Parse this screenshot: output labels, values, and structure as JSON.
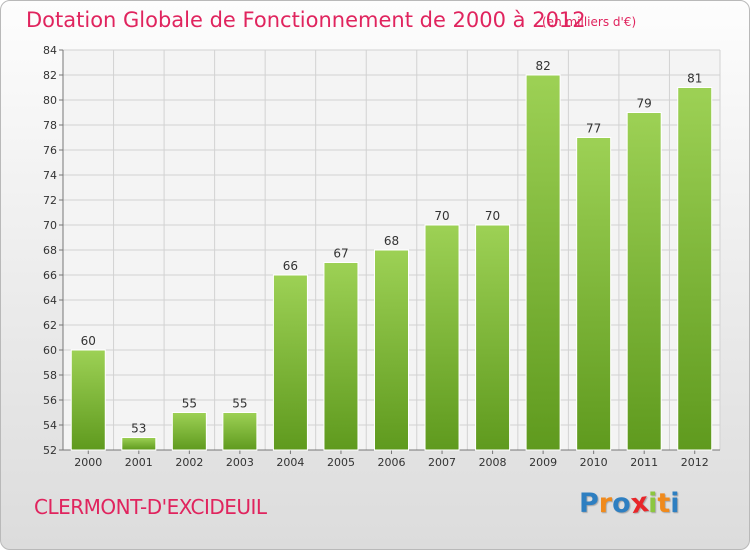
{
  "header": {
    "title": "Dotation Globale de Fonctionnement de 2000 à 2012",
    "subtitle": "(en milliers d'€)"
  },
  "footer": {
    "commune": "CLERMONT-D'EXCIDEUIL",
    "brand": "Proxiti",
    "brand_letters": [
      {
        "char": "P",
        "color": "#2e7fc1"
      },
      {
        "char": "r",
        "color": "#f08a1c"
      },
      {
        "char": "o",
        "color": "#2e7fc1"
      },
      {
        "char": "x",
        "color": "#e8262a"
      },
      {
        "char": "i",
        "color": "#8cc63f"
      },
      {
        "char": "t",
        "color": "#f08a1c"
      },
      {
        "char": "i",
        "color": "#2e7fc1"
      }
    ]
  },
  "chart_data": {
    "type": "bar",
    "title": "Dotation Globale de Fonctionnement de 2000 à 2012",
    "subtitle": "(en milliers d'€)",
    "categories": [
      "2000",
      "2001",
      "2002",
      "2003",
      "2004",
      "2005",
      "2006",
      "2007",
      "2008",
      "2009",
      "2010",
      "2011",
      "2012"
    ],
    "values": [
      60,
      53,
      55,
      55,
      66,
      67,
      68,
      70,
      70,
      82,
      77,
      79,
      81
    ],
    "ylim": [
      52,
      84
    ],
    "yticks": [
      52,
      54,
      56,
      58,
      60,
      62,
      64,
      66,
      68,
      70,
      72,
      74,
      76,
      78,
      80,
      82,
      84
    ],
    "grid": true,
    "bar_color_top": "#9dd155",
    "bar_color_bottom": "#5f9a1e",
    "text_color": "#e0245e"
  }
}
